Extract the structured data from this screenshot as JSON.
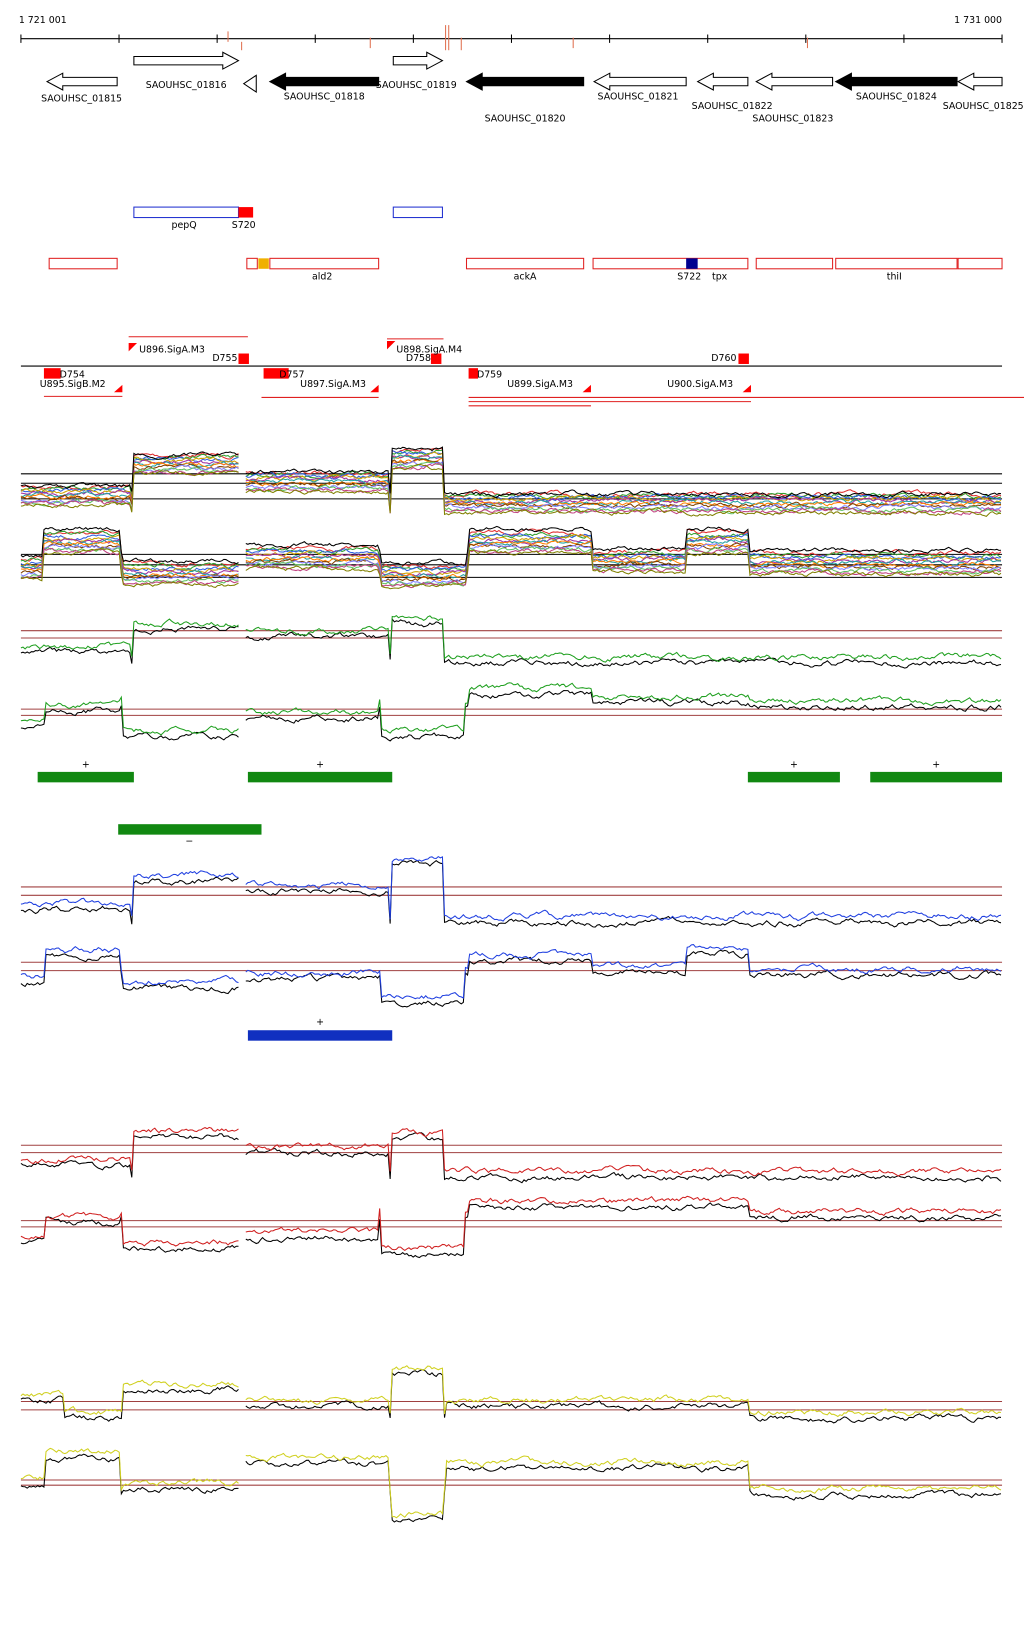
{
  "ruler": {
    "start": "1 721 001",
    "end": "1 731 000"
  },
  "genes": [
    "SAOUHSC_01815",
    "SAOUHSC_01816",
    "SAOUHSC_01818",
    "SAOUHSC_01819",
    "SAOUHSC_01820",
    "SAOUHSC_01821",
    "SAOUHSC_01822",
    "SAOUHSC_01823",
    "SAOUHSC_01824",
    "SAOUHSC_01825"
  ],
  "annotations": [
    "pepQ",
    "S720",
    "ald2",
    "ackA",
    "S722",
    "tpx",
    "thiI"
  ],
  "features": [
    "U895.SigB.M2",
    "D754",
    "U896.SigA.M3",
    "D755",
    "D757",
    "U897.SigA.M3",
    "U898.SigA.M4",
    "D758",
    "D759",
    "U899.SigA.M3",
    "D760",
    "U900.SigA.M3"
  ],
  "segment_signs": [
    "+",
    "+",
    "+",
    "+",
    "−",
    "+"
  ]
}
